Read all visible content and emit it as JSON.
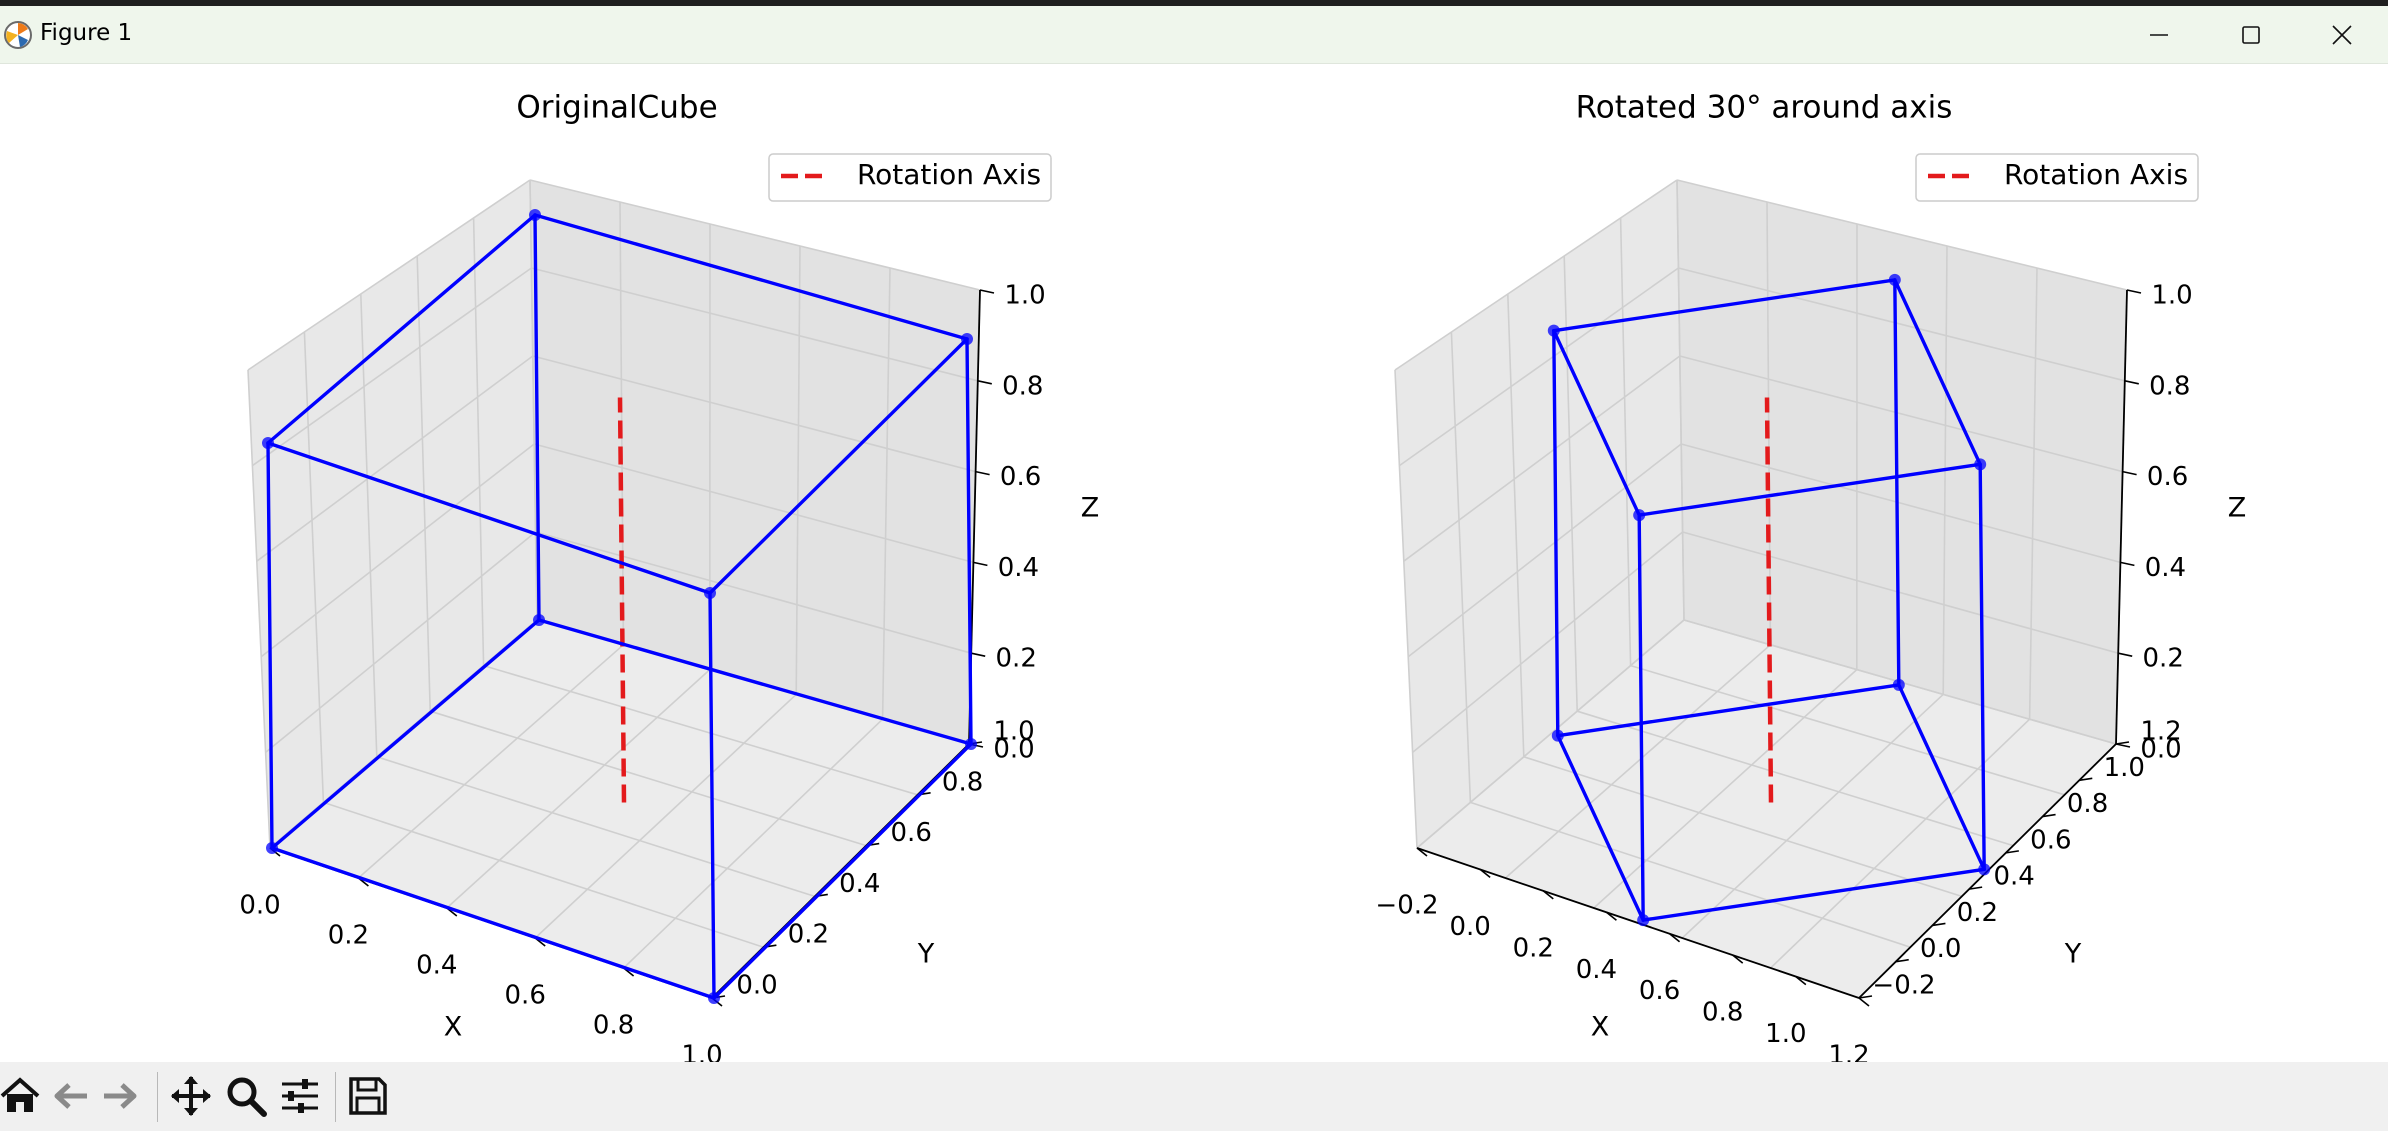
{
  "window": {
    "title": "Figure 1",
    "app_icon": "matplotlib-icon",
    "controls": [
      "minimize-icon",
      "maximize-icon",
      "close-icon"
    ]
  },
  "toolbar": {
    "items": [
      "home-icon",
      "back-arrow-icon",
      "forward-arrow-icon",
      "pan-icon",
      "zoom-icon",
      "subplots-config-icon",
      "save-icon"
    ]
  },
  "colors": {
    "cube_edges": "#0000ff",
    "rotation_axis": "#e31a1c",
    "titlebar_bg": "#eff6ec",
    "toolbar_bg": "#f0f0f0"
  },
  "chart_data": [
    {
      "type": "3d-line",
      "title": "OriginalCube",
      "xlabel": "X",
      "ylabel": "Y",
      "zlabel": "Z",
      "xticks": [
        "0.0",
        "0.2",
        "0.4",
        "0.6",
        "0.8",
        "1.0"
      ],
      "yticks": [
        "0.0",
        "0.2",
        "0.4",
        "0.6",
        "0.8",
        "1.0"
      ],
      "zticks": [
        "0.0",
        "0.2",
        "0.4",
        "0.6",
        "0.8",
        "1.0"
      ],
      "xlim": [
        0,
        1
      ],
      "ylim": [
        0,
        1
      ],
      "zlim": [
        0,
        1
      ],
      "grid": true,
      "legend": {
        "entries": [
          "Rotation Axis"
        ],
        "position": "top-right"
      },
      "rotation_axis": {
        "x": 0.5,
        "y": 0.5,
        "z": [
          0,
          1
        ],
        "style": "dashed"
      },
      "vertices": [
        [
          0,
          0,
          0
        ],
        [
          1,
          0,
          0
        ],
        [
          1,
          1,
          0
        ],
        [
          0,
          1,
          0
        ],
        [
          0,
          0,
          1
        ],
        [
          1,
          0,
          1
        ],
        [
          1,
          1,
          1
        ],
        [
          0,
          1,
          1
        ]
      ],
      "edges": [
        [
          0,
          1
        ],
        [
          1,
          2
        ],
        [
          2,
          3
        ],
        [
          3,
          0
        ],
        [
          4,
          5
        ],
        [
          5,
          6
        ],
        [
          6,
          7
        ],
        [
          7,
          4
        ],
        [
          0,
          4
        ],
        [
          1,
          5
        ],
        [
          2,
          6
        ],
        [
          3,
          7
        ]
      ]
    },
    {
      "type": "3d-line",
      "title": "Rotated 30° around axis",
      "xlabel": "X",
      "ylabel": "Y",
      "zlabel": "Z",
      "xticks": [
        "−0.2",
        "0.0",
        "0.2",
        "0.4",
        "0.6",
        "0.8",
        "1.0",
        "1.2"
      ],
      "yticks": [
        "−0.2",
        "0.0",
        "0.2",
        "0.4",
        "0.6",
        "0.8",
        "1.0",
        "1.2"
      ],
      "zticks": [
        "0.0",
        "0.2",
        "0.4",
        "0.6",
        "0.8",
        "1.0"
      ],
      "xlim": [
        -0.2,
        1.2
      ],
      "ylim": [
        -0.2,
        1.2
      ],
      "zlim": [
        0,
        1
      ],
      "grid": true,
      "legend": {
        "entries": [
          "Rotation Axis"
        ],
        "position": "top-right"
      },
      "rotation_axis": {
        "x": 0.5,
        "y": 0.5,
        "z": [
          0,
          1
        ],
        "style": "dashed"
      },
      "vertices": [
        [
          0.5,
          -0.183,
          0
        ],
        [
          1.183,
          0.5,
          0
        ],
        [
          0.5,
          1.183,
          0
        ],
        [
          -0.183,
          0.5,
          0
        ],
        [
          0.5,
          -0.183,
          1
        ],
        [
          1.183,
          0.5,
          1
        ],
        [
          0.5,
          1.183,
          1
        ],
        [
          -0.183,
          0.5,
          1
        ]
      ],
      "edges": [
        [
          0,
          1
        ],
        [
          1,
          2
        ],
        [
          2,
          3
        ],
        [
          3,
          0
        ],
        [
          4,
          5
        ],
        [
          5,
          6
        ],
        [
          6,
          7
        ],
        [
          7,
          4
        ],
        [
          0,
          4
        ],
        [
          1,
          5
        ],
        [
          2,
          6
        ],
        [
          3,
          7
        ]
      ]
    }
  ]
}
